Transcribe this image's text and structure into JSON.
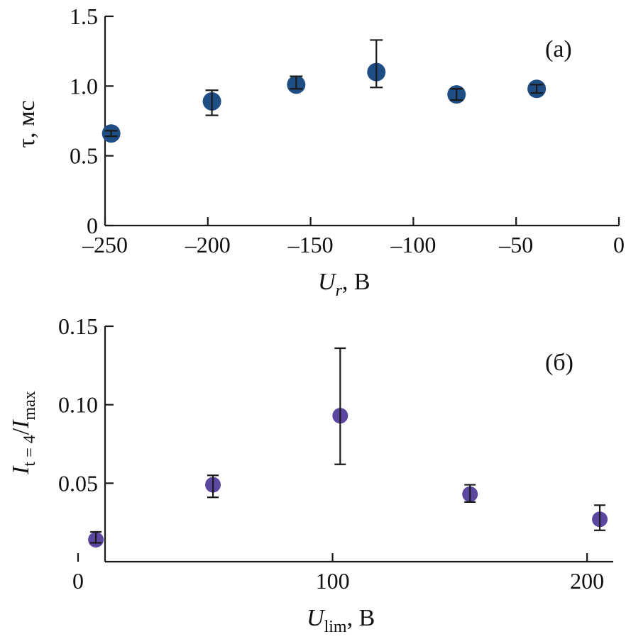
{
  "chart_data": [
    {
      "type": "scatter",
      "panel_label": "(а)",
      "xlabel_main": "U",
      "xlabel_sub": "r",
      "xlabel_unit": ", В",
      "ylabel": "τ, мс",
      "xlim": [
        -250,
        0
      ],
      "ylim": [
        0,
        1.5
      ],
      "xticks": [
        -250,
        -200,
        -150,
        -100,
        -50,
        0
      ],
      "xtick_labels": [
        "–250",
        "–200",
        "–150",
        "–100",
        "–50",
        "0"
      ],
      "yticks": [
        0,
        0.5,
        1.0,
        1.5
      ],
      "ytick_labels": [
        "0",
        "0.5",
        "1.0",
        "1.5"
      ],
      "marker_color": "#1f4e85",
      "series": [
        {
          "x": [
            -247,
            -198,
            -157,
            -118,
            -79,
            -40
          ],
          "y": [
            0.66,
            0.89,
            1.01,
            1.1,
            0.94,
            0.98
          ],
          "err_low": [
            0.64,
            0.79,
            0.98,
            0.99,
            0.9,
            0.95
          ],
          "err_high": [
            0.68,
            0.97,
            1.07,
            1.33,
            0.98,
            1.01
          ]
        }
      ]
    },
    {
      "type": "scatter",
      "panel_label": "(б)",
      "xlabel_main": "U",
      "xlabel_sub": "lim",
      "xlabel_unit": ", В",
      "ylabel_main": "I",
      "ylabel_sub": "t = 4",
      "ylabel_slash": "/",
      "ylabel_main2": "I",
      "ylabel_sub2": "max",
      "xlim": [
        0,
        210
      ],
      "ylim": [
        0,
        0.15
      ],
      "xticks": [
        0,
        100,
        200
      ],
      "xtick_labels": [
        "0",
        "100",
        "200"
      ],
      "yticks": [
        0.05,
        0.1,
        0.15
      ],
      "ytick_labels": [
        "0.05",
        "0.10",
        "0.15"
      ],
      "marker_color": "#5b46a0",
      "series": [
        {
          "x": [
            7,
            53,
            103,
            154,
            205
          ],
          "y": [
            0.014,
            0.049,
            0.093,
            0.043,
            0.027
          ],
          "err_low": [
            0.012,
            0.041,
            0.062,
            0.038,
            0.02
          ],
          "err_high": [
            0.019,
            0.055,
            0.136,
            0.049,
            0.036
          ]
        }
      ]
    }
  ]
}
